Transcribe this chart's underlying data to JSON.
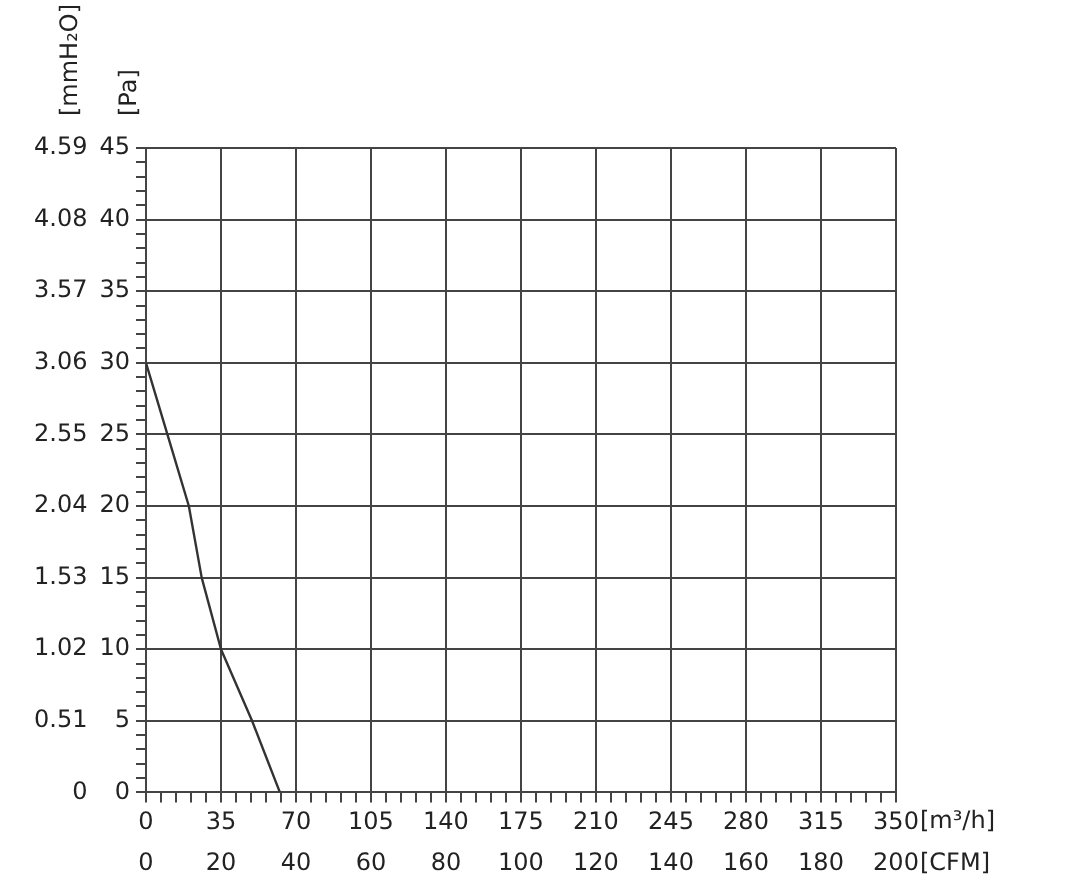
{
  "chart_data": {
    "type": "line",
    "xlabel": "[m³/h]",
    "x2label": "[CFM]",
    "ylabel": "[Pa]",
    "y2label": "[mmH₂O]",
    "x": [
      0,
      10,
      20,
      26,
      35,
      49.5,
      62.5
    ],
    "values": [
      30,
      25,
      20,
      15,
      10,
      5,
      0
    ],
    "color": "#333333",
    "marker": "none",
    "grid": true,
    "xlim": [
      0,
      350
    ],
    "xticks": [
      0,
      {
        "value": 7,
        "label": null
      },
      {
        "value": 14,
        "label": null
      },
      {
        "value": 21,
        "label": null
      },
      {
        "value": 28,
        "label": null
      },
      35,
      {
        "value": 42,
        "label": null
      },
      {
        "value": 49,
        "label": null
      },
      {
        "value": 56,
        "label": null
      },
      {
        "value": 63,
        "label": null
      },
      70,
      {
        "value": 77,
        "label": null
      },
      {
        "value": 84,
        "label": null
      },
      {
        "value": 91,
        "label": null
      },
      {
        "value": 98,
        "label": null
      },
      105,
      {
        "value": 112,
        "label": null
      },
      {
        "value": 119,
        "label": null
      },
      {
        "value": 126,
        "label": null
      },
      {
        "value": 133,
        "label": null
      },
      140,
      {
        "value": 147,
        "label": null
      },
      {
        "value": 154,
        "label": null
      },
      {
        "value": 161,
        "label": null
      },
      {
        "value": 168,
        "label": null
      },
      175,
      {
        "value": 182,
        "label": null
      },
      {
        "value": 189,
        "label": null
      },
      {
        "value": 196,
        "label": null
      },
      {
        "value": 203,
        "label": null
      },
      210,
      {
        "value": 217,
        "label": null
      },
      {
        "value": 224,
        "label": null
      },
      {
        "value": 231,
        "label": null
      },
      {
        "value": 238,
        "label": null
      },
      245,
      {
        "value": 252,
        "label": null
      },
      {
        "value": 259,
        "label": null
      },
      {
        "value": 266,
        "label": null
      },
      {
        "value": 273,
        "label": null
      },
      280,
      {
        "value": 287,
        "label": null
      },
      {
        "value": 294,
        "label": null
      },
      {
        "value": 301,
        "label": null
      },
      {
        "value": 308,
        "label": null
      },
      315,
      {
        "value": 322,
        "label": null
      },
      {
        "value": 329,
        "label": null
      },
      {
        "value": 336,
        "label": null
      },
      {
        "value": 343,
        "label": null
      },
      350
    ],
    "x2lim": [
      0,
      200
    ],
    "x2ticks": [
      0,
      20,
      40,
      60,
      80,
      100,
      120,
      140,
      160,
      180,
      200
    ],
    "ylim": [
      0,
      45
    ],
    "yticks": [
      0,
      {
        "value": 1,
        "label": null
      },
      {
        "value": 2,
        "label": null
      },
      {
        "value": 3,
        "label": null
      },
      {
        "value": 4,
        "label": null
      },
      5,
      {
        "value": 6,
        "label": null
      },
      {
        "value": 7,
        "label": null
      },
      {
        "value": 8,
        "label": null
      },
      {
        "value": 9,
        "label": null
      },
      10,
      {
        "value": 11,
        "label": null
      },
      {
        "value": 12,
        "label": null
      },
      {
        "value": 13,
        "label": null
      },
      {
        "value": 14,
        "label": null
      },
      15,
      {
        "value": 16,
        "label": null
      },
      {
        "value": 17,
        "label": null
      },
      {
        "value": 18,
        "label": null
      },
      {
        "value": 19,
        "label": null
      },
      20,
      {
        "value": 21,
        "label": null
      },
      {
        "value": 22,
        "label": null
      },
      {
        "value": 23,
        "label": null
      },
      {
        "value": 24,
        "label": null
      },
      25,
      {
        "value": 26,
        "label": null
      },
      {
        "value": 27,
        "label": null
      },
      {
        "value": 28,
        "label": null
      },
      {
        "value": 29,
        "label": null
      },
      30,
      {
        "value": 31,
        "label": null
      },
      {
        "value": 32,
        "label": null
      },
      {
        "value": 33,
        "label": null
      },
      {
        "value": 34,
        "label": null
      },
      35,
      {
        "value": 36,
        "label": null
      },
      {
        "value": 37,
        "label": null
      },
      {
        "value": 38,
        "label": null
      },
      {
        "value": 39,
        "label": null
      },
      40,
      {
        "value": 41,
        "label": null
      },
      {
        "value": 42,
        "label": null
      },
      {
        "value": 43,
        "label": null
      },
      {
        "value": 44,
        "label": null
      },
      45
    ],
    "y2lim": [
      0,
      4.59
    ],
    "y2ticks": [
      0,
      0.51,
      1.02,
      1.53,
      2.04,
      2.55,
      3.06,
      3.57,
      4.08,
      4.59
    ]
  }
}
